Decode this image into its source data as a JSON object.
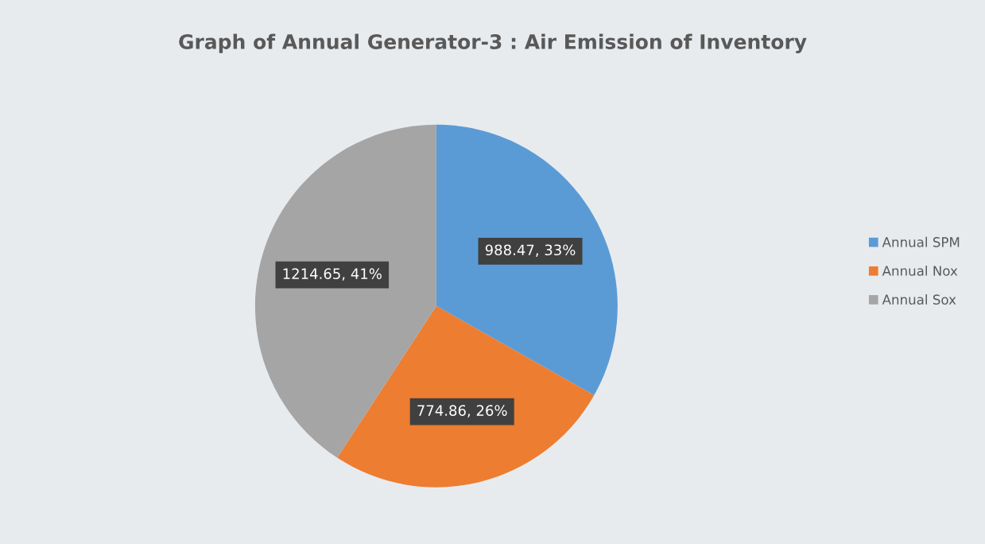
{
  "chart_data": {
    "type": "pie",
    "title": "Graph of Annual Generator-3 : Air Emission of Inventory",
    "categories": [
      "Annual SPM",
      "Annual Nox",
      "Annual Sox"
    ],
    "values": [
      988.47,
      774.86,
      1214.65
    ],
    "colors": [
      "#5b9bd5",
      "#ed7d31",
      "#a5a5a5"
    ],
    "value_labels": [
      "988.47, 33%",
      "774.86, 26%",
      "1214.65, 41%"
    ],
    "legend": "right"
  }
}
